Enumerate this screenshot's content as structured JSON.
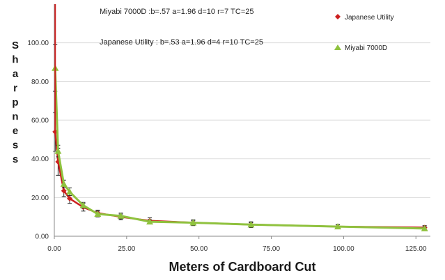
{
  "chart_data": {
    "type": "line",
    "xlabel": "Meters of Cardboard Cut",
    "ylabel": "Sharpness",
    "xlim": [
      0,
      130
    ],
    "ylim": [
      0,
      120
    ],
    "x_ticks": [
      "0.00",
      "25.00",
      "50.00",
      "75.00",
      "100.00",
      "125.00"
    ],
    "y_ticks": [
      "0.00",
      "20.00",
      "40.00",
      "60.00",
      "80.00",
      "100.00"
    ],
    "grid": "horizontal",
    "legend_position": "top-right",
    "annotations": [
      "Miyabi 7000D    :b=.57  a=1.96  d=10  r=7   TC=25",
      "Japanese Utility : b=.53  a=1.96  d=4    r=10  TC=25"
    ],
    "series": [
      {
        "name": "Japanese Utility",
        "color": "#cc1f1f",
        "marker": "diamond",
        "points": [
          {
            "x": 0.3,
            "y": 54,
            "err": 10
          },
          {
            "x": 1.3,
            "y": 38.5,
            "err": 7
          },
          {
            "x": 3.3,
            "y": 23.5,
            "err": 3
          },
          {
            "x": 5.3,
            "y": 19.5,
            "err": 2.5
          },
          {
            "x": 10,
            "y": 15,
            "err": 2
          },
          {
            "x": 15,
            "y": 12,
            "err": 1.5
          },
          {
            "x": 23,
            "y": 10,
            "err": 1.5
          },
          {
            "x": 33,
            "y": 8,
            "err": 1.5
          },
          {
            "x": 48,
            "y": 7,
            "err": 1.5
          },
          {
            "x": 68,
            "y": 6,
            "err": 1.5
          },
          {
            "x": 98,
            "y": 5,
            "err": 1
          },
          {
            "x": 128,
            "y": 4.5,
            "err": 1
          }
        ]
      },
      {
        "name": "Miyabi 7000D",
        "color": "#8fc23e",
        "marker": "triangle",
        "points": [
          {
            "x": 0.3,
            "y": 87,
            "err": 12
          },
          {
            "x": 1.3,
            "y": 44,
            "err": 3
          },
          {
            "x": 3.3,
            "y": 27,
            "err": 2
          },
          {
            "x": 5.3,
            "y": 23,
            "err": 2
          },
          {
            "x": 10,
            "y": 16,
            "err": 1.5
          },
          {
            "x": 15,
            "y": 11.5,
            "err": 1.5
          },
          {
            "x": 23,
            "y": 10.5,
            "err": 1.5
          },
          {
            "x": 33,
            "y": 7.5,
            "err": 1
          },
          {
            "x": 48,
            "y": 7,
            "err": 1
          },
          {
            "x": 68,
            "y": 6,
            "err": 1
          },
          {
            "x": 98,
            "y": 5,
            "err": 1
          },
          {
            "x": 128,
            "y": 4,
            "err": 0.8
          }
        ]
      }
    ]
  }
}
